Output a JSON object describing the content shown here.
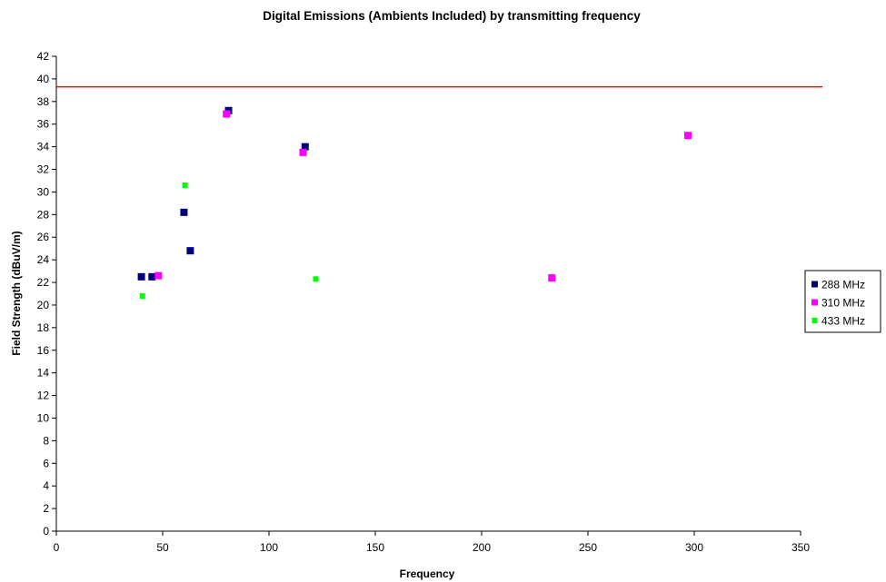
{
  "chart_data": {
    "type": "scatter",
    "title": "Digital Emissions (Ambients Included) by transmitting frequency",
    "xlabel": "Frequency",
    "ylabel": "Field Strength (dBuV/m)",
    "xlim": [
      0,
      350
    ],
    "ylim": [
      0,
      42
    ],
    "x_ticks": [
      0,
      50,
      100,
      150,
      200,
      250,
      300,
      350
    ],
    "y_ticks": [
      0,
      2,
      4,
      6,
      8,
      10,
      12,
      14,
      16,
      18,
      20,
      22,
      24,
      26,
      28,
      30,
      32,
      34,
      36,
      38,
      40,
      42
    ],
    "grid": false,
    "legend_position": "right",
    "limit_line": {
      "y": 39.3,
      "color": "#ff0000"
    },
    "series": [
      {
        "name": "288 MHz",
        "color": "#000080",
        "marker": "square",
        "points": [
          [
            40,
            22.5
          ],
          [
            45,
            22.5
          ],
          [
            60,
            28.2
          ],
          [
            63,
            24.8
          ],
          [
            81,
            37.2
          ],
          [
            117,
            34.0
          ]
        ]
      },
      {
        "name": "310 MHz",
        "color": "#ff00ff",
        "marker": "square",
        "points": [
          [
            48,
            22.6
          ],
          [
            80,
            36.9
          ],
          [
            116,
            33.5
          ],
          [
            233,
            22.4
          ],
          [
            297,
            35.0
          ]
        ]
      },
      {
        "name": "433 MHz",
        "color": "#00ff00",
        "marker": "square-small",
        "points": [
          [
            40.5,
            20.8
          ],
          [
            60.5,
            30.6
          ],
          [
            122,
            22.3
          ]
        ]
      }
    ]
  }
}
